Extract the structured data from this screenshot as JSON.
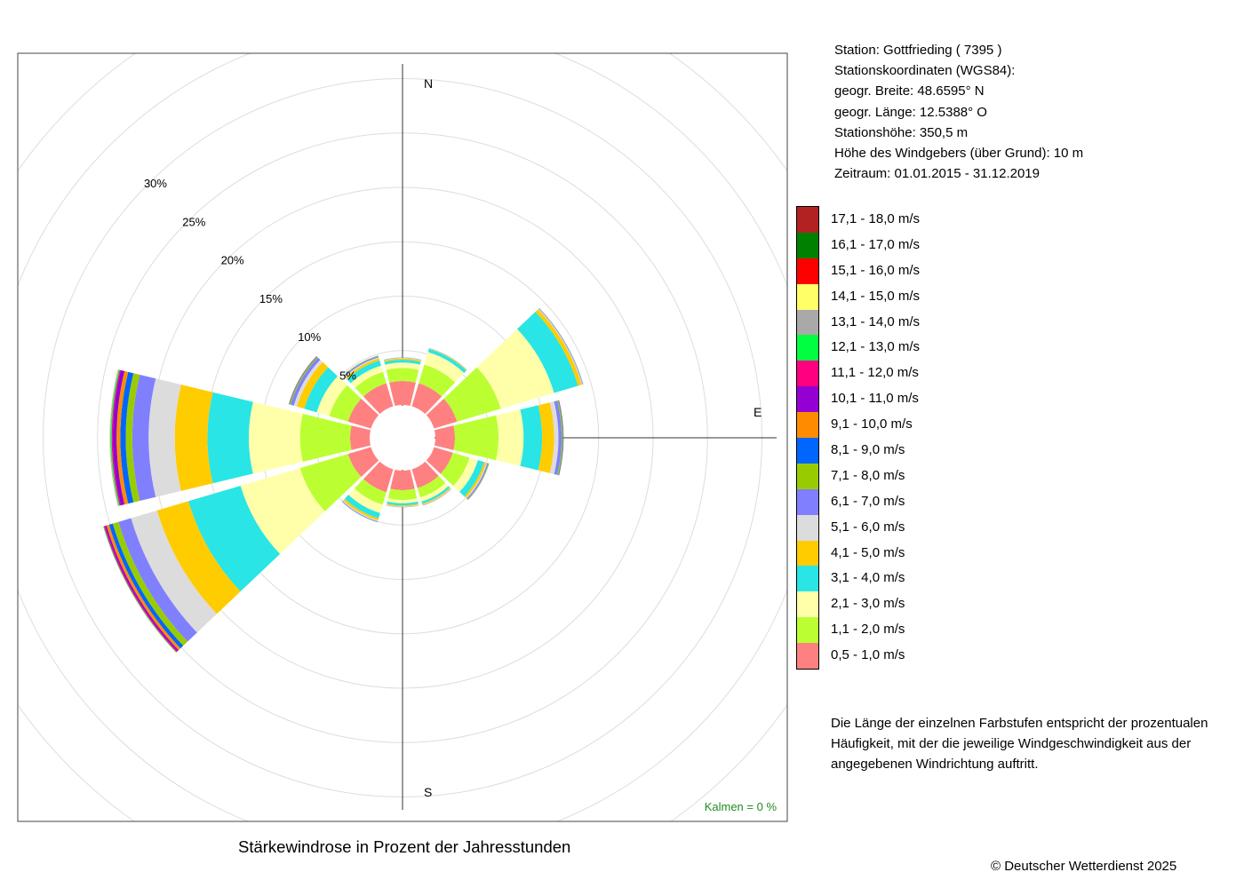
{
  "station_info": {
    "station": "Station:  Gottfrieding  ( 7395 )",
    "coords_title": "Stationskoordinaten (WGS84):",
    "lat": "geogr. Breite: 48.6595° N",
    "lon": "geogr. Länge: 12.5388° O",
    "height": "Stationshöhe: 350,5 m",
    "sensor_height": "Höhe des Windgebers (über Grund): 10 m",
    "period": "Zeitraum: 01.01.2015 - 31.12.2019"
  },
  "legend": [
    {
      "label": "17,1 - 18,0 m/s",
      "color": "#B22222"
    },
    {
      "label": "16,1 - 17,0 m/s",
      "color": "#008000"
    },
    {
      "label": "15,1 - 16,0 m/s",
      "color": "#FF0000"
    },
    {
      "label": "14,1 - 15,0 m/s",
      "color": "#FFFF66"
    },
    {
      "label": "13,1 - 14,0 m/s",
      "color": "#A9A9A9"
    },
    {
      "label": "12,1 - 13,0 m/s",
      "color": "#00FF40"
    },
    {
      "label": "11,1 - 12,0 m/s",
      "color": "#FF0080"
    },
    {
      "label": "10,1 - 11,0 m/s",
      "color": "#9400D3"
    },
    {
      "label": "9,1 - 10,0 m/s",
      "color": "#FF8C00"
    },
    {
      "label": "8,1 - 9,0 m/s",
      "color": "#0066FF"
    },
    {
      "label": "7,1 - 8,0 m/s",
      "color": "#99CC00"
    },
    {
      "label": "6,1 - 7,0 m/s",
      "color": "#8080FF"
    },
    {
      "label": "5,1 - 6,0 m/s",
      "color": "#DCDCDC"
    },
    {
      "label": "4,1 - 5,0 m/s",
      "color": "#FFCC00"
    },
    {
      "label": "3,1 - 4,0 m/s",
      "color": "#29E5E5"
    },
    {
      "label": "2,1 - 3,0 m/s",
      "color": "#FFFFAA"
    },
    {
      "label": "1,1 - 2,0 m/s",
      "color": "#BBFF33"
    },
    {
      "label": "0,5 - 1,0 m/s",
      "color": "#FF8080"
    }
  ],
  "note": "Die Länge der einzelnen Farbstufen entspricht der prozentualen Häufigkeit, mit der die jeweilige Windgeschwindigkeit aus der angegebenen Windrichtung auftritt.",
  "caption": "Stärkewindrose in Prozent der Jahresstunden",
  "copyright": "© Deutscher Wetterdienst  2025",
  "chart_data": {
    "type": "polar-stacked-bar",
    "title": "Stärkewindrose in Prozent der Jahresstunden",
    "calm_label": "Kalmen  =  0 %",
    "directions_deg": [
      0,
      30,
      60,
      90,
      120,
      150,
      180,
      210,
      240,
      270,
      300,
      330
    ],
    "compass_labels": {
      "N": "N",
      "E": "E",
      "S": "S"
    },
    "radial_ticks": [
      5,
      10,
      15,
      20,
      25,
      30
    ],
    "radial_tick_labels": [
      "5%",
      "10%",
      "15%",
      "20%",
      "25%",
      "30%"
    ],
    "grid_rings": [
      5,
      10,
      15,
      20,
      25,
      30,
      35,
      40
    ],
    "speed_classes": [
      "0,5 - 1,0 m/s",
      "1,1 - 2,0 m/s",
      "2,1 - 3,0 m/s",
      "3,1 - 4,0 m/s",
      "4,1 - 5,0 m/s",
      "5,1 - 6,0 m/s",
      "6,1 - 7,0 m/s",
      "7,1 - 8,0 m/s",
      "8,1 - 9,0 m/s",
      "9,1 - 10,0 m/s",
      "10,1 - 11,0 m/s",
      "11,1 - 12,0 m/s",
      "12,1 - 13,0 m/s",
      "13,1 - 14,0 m/s",
      "14,1 - 15,0 m/s",
      "15,1 - 16,0 m/s",
      "16,1 - 17,0 m/s",
      "17,1 - 18,0 m/s"
    ],
    "colors": [
      "#FF8080",
      "#BBFF33",
      "#FFFFAA",
      "#29E5E5",
      "#FFCC00",
      "#DCDCDC",
      "#8080FF",
      "#99CC00",
      "#0066FF",
      "#FF8C00",
      "#9400D3",
      "#FF0080",
      "#00FF40",
      "#A9A9A9",
      "#FFFF66",
      "#FF0000",
      "#008000",
      "#B22222"
    ],
    "values": [
      [
        2.2,
        1.2,
        0.5,
        0.25,
        0.12,
        0.05,
        0.02,
        0.01,
        0.01,
        0,
        0,
        0,
        0,
        0,
        0,
        0,
        0,
        0
      ],
      [
        2.2,
        1.8,
        1.2,
        0.3,
        0.05,
        0.02,
        0.02,
        0.01,
        0,
        0,
        0,
        0,
        0,
        0,
        0,
        0,
        0,
        0
      ],
      [
        2.2,
        4.2,
        5.1,
        2.3,
        0.35,
        0.08,
        0.05,
        0.02,
        0.01,
        0,
        0,
        0,
        0,
        0,
        0,
        0,
        0,
        0
      ],
      [
        1.8,
        4.0,
        2.3,
        1.7,
        1.1,
        0.4,
        0.3,
        0.1,
        0.05,
        0.02,
        0.01,
        0,
        0,
        0,
        0,
        0,
        0,
        0
      ],
      [
        1.8,
        1.6,
        0.8,
        0.6,
        0.2,
        0.1,
        0.1,
        0.05,
        0.02,
        0.01,
        0,
        0,
        0,
        0,
        0,
        0,
        0,
        0
      ],
      [
        1.8,
        0.9,
        0.4,
        0.2,
        0.1,
        0.05,
        0.03,
        0.01,
        0,
        0,
        0,
        0,
        0,
        0,
        0,
        0,
        0,
        0
      ],
      [
        1.8,
        0.9,
        0.3,
        0.2,
        0.1,
        0.05,
        0.02,
        0.01,
        0,
        0,
        0,
        0,
        0,
        0,
        0,
        0,
        0,
        0
      ],
      [
        2.2,
        1.2,
        0.8,
        0.5,
        0.2,
        0.1,
        0.05,
        0.02,
        0.01,
        0,
        0,
        0,
        0,
        0,
        0,
        0,
        0,
        0
      ],
      [
        2.2,
        4.6,
        5.7,
        5.0,
        3.0,
        2.5,
        1.2,
        0.55,
        0.35,
        0.25,
        0.15,
        0.1,
        0.05,
        0.02,
        0.01,
        0,
        0,
        0
      ],
      [
        1.8,
        4.6,
        4.7,
        3.8,
        3.0,
        2.4,
        1.5,
        0.6,
        0.5,
        0.35,
        0.35,
        0.1,
        0.1,
        0.05,
        0.02,
        0.01,
        0,
        0
      ],
      [
        2.2,
        1.8,
        1.2,
        1.2,
        0.7,
        0.3,
        0.3,
        0.1,
        0.05,
        0.03,
        0.01,
        0,
        0,
        0,
        0,
        0,
        0,
        0
      ],
      [
        2.2,
        1.1,
        0.6,
        0.5,
        0.2,
        0.1,
        0.1,
        0.05,
        0.02,
        0,
        0,
        0,
        0,
        0,
        0,
        0,
        0,
        0
      ]
    ]
  }
}
